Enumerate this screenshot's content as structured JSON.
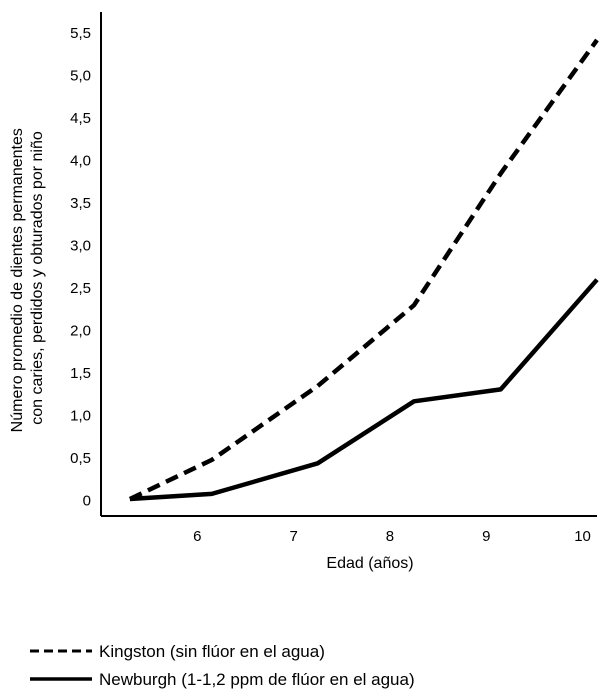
{
  "chart_data": {
    "type": "line",
    "x": [
      5.3,
      6.15,
      7.25,
      8.25,
      9.15,
      10.15
    ],
    "xticks": [
      6,
      7,
      8,
      9,
      10
    ],
    "xtick_labels": [
      "6",
      "7",
      "8",
      "9",
      "10"
    ],
    "xlim": [
      5.0,
      10.15
    ],
    "yticks": [
      0,
      0.5,
      1.0,
      1.5,
      2.0,
      2.5,
      3.0,
      3.5,
      4.0,
      4.5,
      5.0,
      5.5
    ],
    "ytick_labels": [
      "0",
      "0,5",
      "1,0",
      "1,5",
      "2,0",
      "2,5",
      "3,0",
      "3,5",
      "4,0",
      "4,5",
      "5,0",
      "5,5"
    ],
    "ylim": [
      -0.18,
      5.75
    ],
    "xlabel": "Edad (años)",
    "ylabel_lines": [
      "Número promedio de dientes permanentes",
      "con caries, perdidos y obturados por niño"
    ],
    "legend_position": "bottom-left",
    "series": [
      {
        "name": "Kingston (sin flúor en el agua)",
        "style": "dashed",
        "color": "#000000",
        "values": [
          0.02,
          0.48,
          1.35,
          2.3,
          3.85,
          5.42
        ]
      },
      {
        "name": "Newburgh (1-1,2 ppm de flúor en el agua)",
        "style": "solid",
        "color": "#000000",
        "values": [
          0.02,
          0.08,
          0.44,
          1.17,
          1.31,
          2.6
        ]
      }
    ]
  }
}
